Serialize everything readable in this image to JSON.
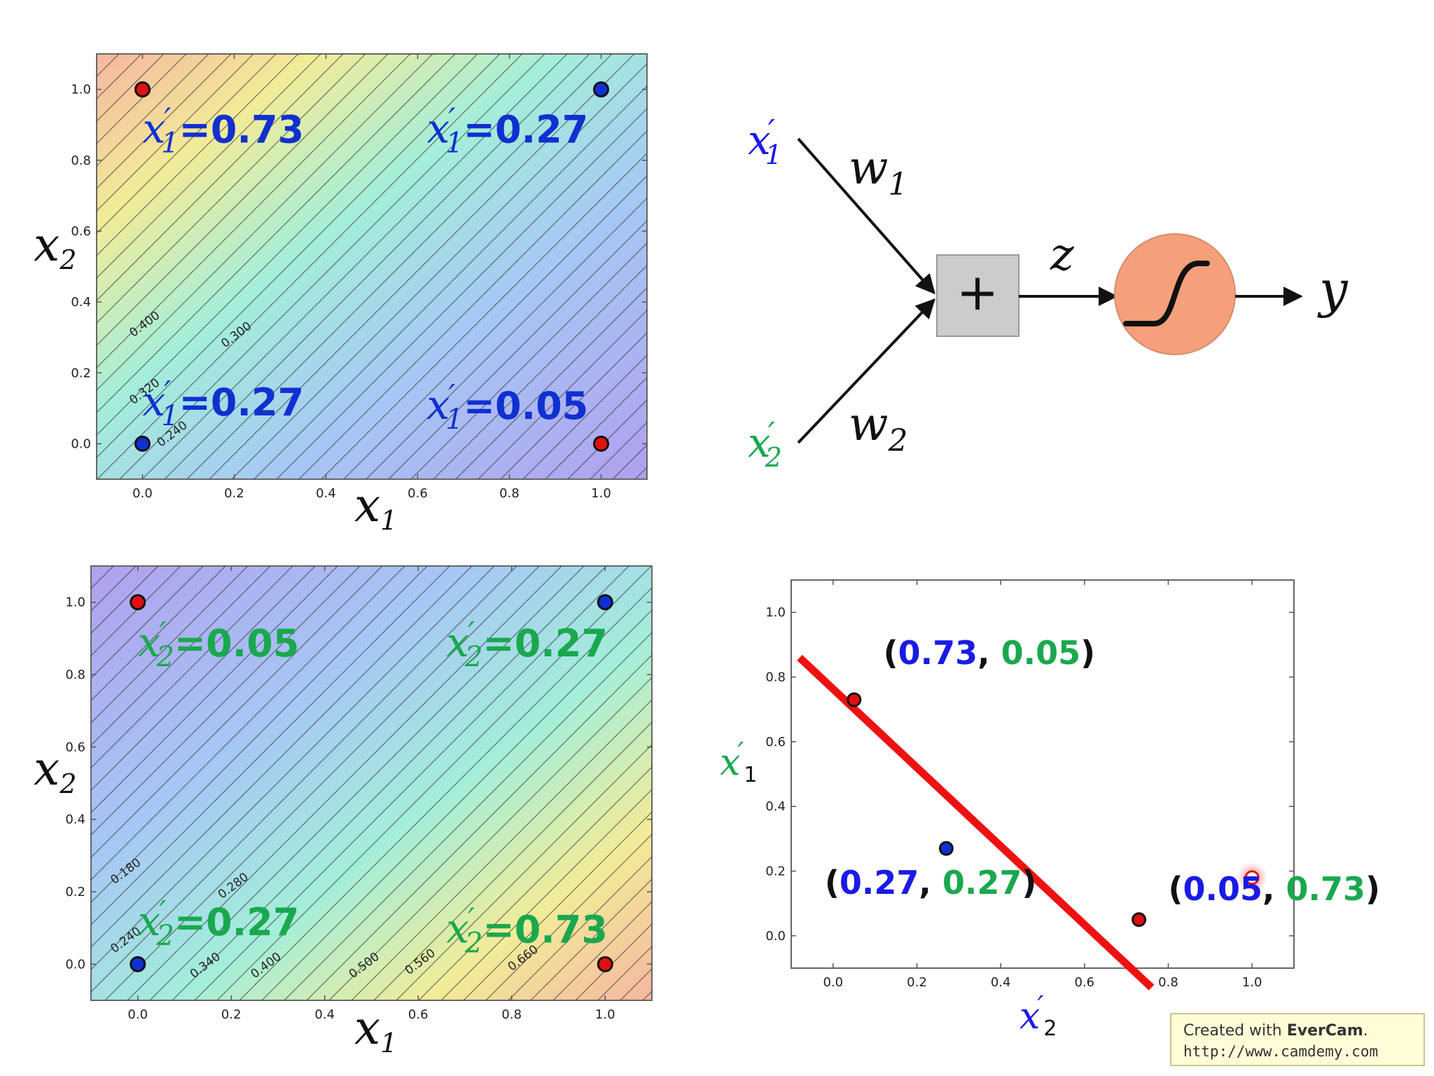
{
  "colors": {
    "blue": "#1a1ae6",
    "green": "#1aa84e",
    "red_point": "#e01010",
    "blue_point": "#1030d0",
    "decision_line": "#ee1111",
    "adder_fill": "#cccccc",
    "sigmoid_fill": "#f5a07a"
  },
  "icons": {
    "adder": "plus-icon",
    "activation": "sigmoid-icon"
  },
  "chart_data": [
    {
      "type": "heatmap",
      "xlabel": "x",
      "xlabel_sub": "1",
      "ylabel": "x",
      "ylabel_sub": "2",
      "xlim": [
        -0.1,
        1.1
      ],
      "ylim": [
        -0.1,
        1.1
      ],
      "x_ticks": [
        "0.0",
        "0.2",
        "0.4",
        "0.6",
        "0.8",
        "1.0"
      ],
      "y_ticks": [
        "0.0",
        "0.2",
        "0.4",
        "0.6",
        "0.8",
        "1.0"
      ],
      "gradient": "x2 - x1",
      "contour_labels": [
        {
          "text": "0.400",
          "x": -0.02,
          "y": 0.3
        },
        {
          "text": "0.300",
          "x": 0.18,
          "y": 0.27
        },
        {
          "text": "0.320",
          "x": -0.02,
          "y": 0.11
        },
        {
          "text": "0.240",
          "x": 0.04,
          "y": -0.01
        }
      ],
      "points": [
        {
          "x": 0,
          "y": 1,
          "color": "red"
        },
        {
          "x": 1,
          "y": 1,
          "color": "blue"
        },
        {
          "x": 0,
          "y": 0,
          "color": "blue"
        },
        {
          "x": 1,
          "y": 0,
          "color": "red"
        }
      ],
      "annotations": [
        {
          "var": "x",
          "prime": "′",
          "sub": "1",
          "value": "=0.73",
          "x": 0.0,
          "y": 0.85,
          "color": "blue"
        },
        {
          "var": "x",
          "prime": "′",
          "sub": "1",
          "value": "=0.27",
          "x": 0.62,
          "y": 0.85,
          "color": "blue"
        },
        {
          "var": "x",
          "prime": "′",
          "sub": "1",
          "value": "=0.27",
          "x": 0.0,
          "y": 0.08,
          "color": "blue"
        },
        {
          "var": "x",
          "prime": "′",
          "sub": "1",
          "value": "=0.05",
          "x": 0.62,
          "y": 0.07,
          "color": "blue"
        }
      ]
    },
    {
      "type": "heatmap",
      "xlabel": "x",
      "xlabel_sub": "1",
      "ylabel": "x",
      "ylabel_sub": "2",
      "xlim": [
        -0.1,
        1.1
      ],
      "ylim": [
        -0.1,
        1.1
      ],
      "x_ticks": [
        "0.0",
        "0.2",
        "0.4",
        "0.6",
        "0.8",
        "1.0"
      ],
      "y_ticks": [
        "0.0",
        "0.2",
        "0.4",
        "0.6",
        "0.8",
        "1.0"
      ],
      "gradient": "x1 - x2",
      "contour_labels": [
        {
          "text": "0.180",
          "x": -0.05,
          "y": 0.22
        },
        {
          "text": "0.280",
          "x": 0.18,
          "y": 0.18
        },
        {
          "text": "0.240",
          "x": -0.05,
          "y": 0.03
        },
        {
          "text": "0.340",
          "x": 0.12,
          "y": -0.04
        },
        {
          "text": "0.400",
          "x": 0.25,
          "y": -0.04
        },
        {
          "text": "0.500",
          "x": 0.46,
          "y": -0.04
        },
        {
          "text": "0.560",
          "x": 0.58,
          "y": -0.03
        },
        {
          "text": "0.660",
          "x": 0.8,
          "y": -0.02
        }
      ],
      "points": [
        {
          "x": 0,
          "y": 1,
          "color": "red"
        },
        {
          "x": 1,
          "y": 1,
          "color": "blue"
        },
        {
          "x": 0,
          "y": 0,
          "color": "blue"
        },
        {
          "x": 1,
          "y": 0,
          "color": "red"
        }
      ],
      "annotations": [
        {
          "var": "x",
          "prime": "′",
          "sub": "2",
          "value": "=0.05",
          "x": 0.0,
          "y": 0.85,
          "color": "green"
        },
        {
          "var": "x",
          "prime": "′",
          "sub": "2",
          "value": "=0.27",
          "x": 0.66,
          "y": 0.85,
          "color": "green"
        },
        {
          "var": "x",
          "prime": "′",
          "sub": "2",
          "value": "=0.27",
          "x": 0.0,
          "y": 0.08,
          "color": "green"
        },
        {
          "var": "x",
          "prime": "′",
          "sub": "2",
          "value": "=0.73",
          "x": 0.66,
          "y": 0.06,
          "color": "green"
        }
      ]
    },
    {
      "type": "scatter",
      "xlabel": "x",
      "xlabel_prime": "′",
      "xlabel_sub": "2",
      "ylabel": "x",
      "ylabel_prime": "′",
      "ylabel_sub": "1",
      "xlim": [
        -0.1,
        1.1
      ],
      "ylim": [
        -0.1,
        1.1
      ],
      "x_ticks": [
        "0.0",
        "0.2",
        "0.4",
        "0.6",
        "0.8",
        "1.0"
      ],
      "y_ticks": [
        "0.0",
        "0.2",
        "0.4",
        "0.6",
        "0.8",
        "1.0"
      ],
      "points": [
        {
          "x": 0.05,
          "y": 0.73,
          "color": "red"
        },
        {
          "x": 0.27,
          "y": 0.27,
          "color": "blue"
        },
        {
          "x": 0.73,
          "y": 0.05,
          "color": "red"
        },
        {
          "x": 1.0,
          "y": 0.18,
          "color": "cursor"
        }
      ],
      "point_labels": [
        {
          "a": "0.73",
          "b": "0.05",
          "x": 0.12,
          "y": 0.84
        },
        {
          "a": "0.27",
          "b": "0.27",
          "x": -0.02,
          "y": 0.13
        },
        {
          "a": "0.05",
          "b": "0.73",
          "x": 0.8,
          "y": 0.11
        }
      ],
      "decision_line": {
        "x1": -0.08,
        "y1": 0.86,
        "x2": 0.76,
        "y2": -0.16
      }
    }
  ],
  "network": {
    "input1": {
      "var": "x",
      "prime": "′",
      "sub": "1"
    },
    "input2": {
      "var": "x",
      "prime": "′",
      "sub": "2"
    },
    "weight1": {
      "var": "w",
      "sub": "1"
    },
    "weight2": {
      "var": "w",
      "sub": "2"
    },
    "sum_label": "z",
    "output_label": "y",
    "adder_symbol": "+"
  },
  "watermark": {
    "line1_prefix": "Created with ",
    "line1_brand": "EverCam",
    "line1_suffix": ".",
    "line2": "http://www.camdemy.com"
  }
}
